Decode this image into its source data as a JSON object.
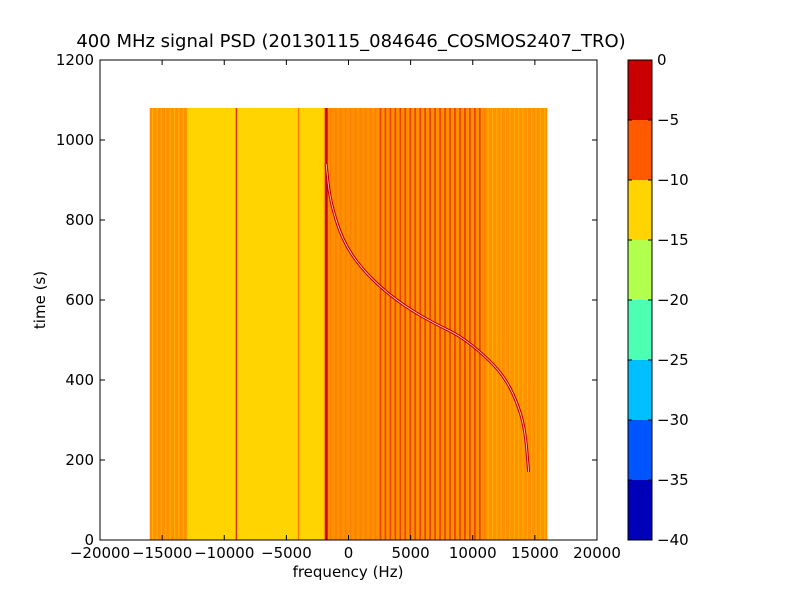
{
  "chart_data": {
    "type": "heatmap",
    "title": "400 MHz signal PSD (20130115_084646_COSMOS2407_TRO)",
    "xlabel": "frequency (Hz)",
    "ylabel": "time (s)",
    "xlim": [
      -20000,
      20000
    ],
    "ylim": [
      0,
      1200
    ],
    "xticks": [
      -20000,
      -15000,
      -10000,
      -5000,
      0,
      5000,
      10000,
      15000,
      20000
    ],
    "yticks": [
      0,
      200,
      400,
      600,
      800,
      1000,
      1200
    ],
    "grid": false,
    "data_extent": {
      "x": [
        -16000,
        16000
      ],
      "y": [
        0,
        1080
      ]
    },
    "background_bands": [
      {
        "x": [
          -16000,
          -13000
        ],
        "level": -8
      },
      {
        "x": [
          -13000,
          -2000
        ],
        "level": -10
      },
      {
        "x": [
          -2000,
          11000
        ],
        "level": -8
      },
      {
        "x": [
          11000,
          16000
        ],
        "level": -8
      }
    ],
    "spectral_lines": [
      {
        "freq": -9000,
        "level": -3
      },
      {
        "freq": -4000,
        "level": -5
      },
      {
        "freq": -1800,
        "level": -1
      }
    ],
    "doppler_trace": {
      "level": -1,
      "points": [
        [
          -1800,
          940
        ],
        [
          -1500,
          850
        ],
        [
          -500,
          750
        ],
        [
          1000,
          680
        ],
        [
          3000,
          620
        ],
        [
          5000,
          575
        ],
        [
          7000,
          540
        ],
        [
          9000,
          510
        ],
        [
          11000,
          460
        ],
        [
          12500,
          410
        ],
        [
          13500,
          350
        ],
        [
          14200,
          280
        ],
        [
          14500,
          170
        ]
      ]
    },
    "colorbar": {
      "range": [
        -40,
        0
      ],
      "ticks": [
        0,
        -5,
        -10,
        -15,
        -20,
        -25,
        -30,
        -35,
        -40
      ],
      "levels": [
        {
          "from": -40,
          "to": -35,
          "color": "#0000b8"
        },
        {
          "from": -35,
          "to": -30,
          "color": "#0055ff"
        },
        {
          "from": -30,
          "to": -25,
          "color": "#00bfff"
        },
        {
          "from": -25,
          "to": -20,
          "color": "#4dffb2"
        },
        {
          "from": -20,
          "to": -15,
          "color": "#b2ff4d"
        },
        {
          "from": -15,
          "to": -10,
          "color": "#ffd400"
        },
        {
          "from": -10,
          "to": -5,
          "color": "#ff5a00"
        },
        {
          "from": -5,
          "to": 0,
          "color": "#c80000"
        }
      ]
    }
  }
}
